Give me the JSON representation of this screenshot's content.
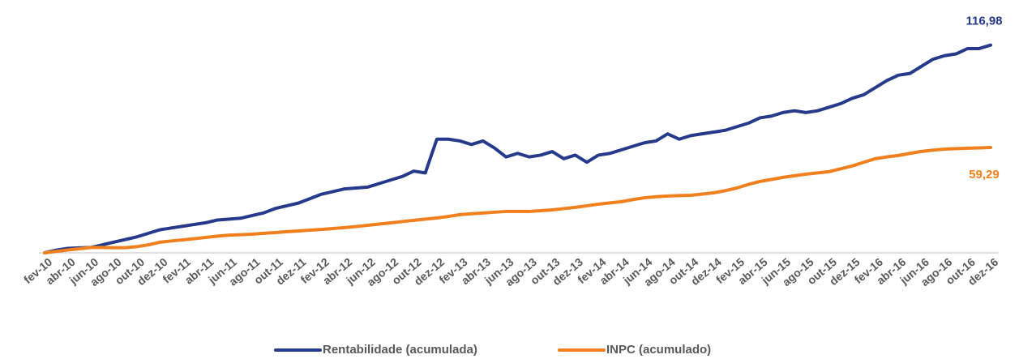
{
  "chart_data": {
    "type": "line",
    "categories": [
      "fev-10",
      null,
      "abr-10",
      null,
      "jun-10",
      null,
      "ago-10",
      null,
      "out-10",
      null,
      "dez-10",
      null,
      "fev-11",
      null,
      "abr-11",
      null,
      "jun-11",
      null,
      "ago-11",
      null,
      "out-11",
      null,
      "dez-11",
      null,
      "fev-12",
      null,
      "abr-12",
      null,
      "jun-12",
      null,
      "ago-12",
      null,
      "out-12",
      null,
      "dez-12",
      null,
      "fev-13",
      null,
      "abr-13",
      null,
      "jun-13",
      null,
      "ago-13",
      null,
      "out-13",
      null,
      "dez-13",
      null,
      "fev-14",
      null,
      "abr-14",
      null,
      "jun-14",
      null,
      "ago-14",
      null,
      "out-14",
      null,
      "dez-14",
      null,
      "fev-15",
      null,
      "abr-15",
      null,
      "jun-15",
      null,
      "ago-15",
      null,
      "out-15",
      null,
      "dez-15",
      null,
      "fev-16",
      null,
      "abr-16",
      null,
      "jun-16",
      null,
      "ago-16",
      null,
      "out-16",
      null,
      "dez-16"
    ],
    "series": [
      {
        "name": "Rentabilidade (acumulada)",
        "color": "#253a8a",
        "values": [
          0,
          1.5,
          2.5,
          2.8,
          3,
          4.5,
          6,
          7.5,
          9,
          11,
          13,
          14,
          15,
          16,
          17,
          18.5,
          19,
          19.5,
          21,
          22.5,
          25,
          26.5,
          28,
          30.5,
          33,
          34.5,
          36,
          36.5,
          37,
          39,
          41,
          43,
          46,
          45,
          64,
          64,
          63,
          61,
          63,
          59,
          54,
          56,
          54,
          55,
          57,
          53,
          55,
          51,
          55,
          56,
          58,
          60,
          62,
          63,
          67,
          64,
          66,
          67,
          68,
          69,
          71,
          73,
          76,
          77,
          79,
          80,
          79,
          80,
          82,
          84,
          87,
          89,
          93,
          97,
          100,
          101,
          105,
          109,
          111,
          112,
          115,
          115,
          116.98
        ],
        "value_labels": [
          null,
          null,
          null,
          null,
          null,
          null,
          null,
          null,
          null,
          null,
          null,
          null,
          null,
          null,
          null,
          null,
          null,
          null,
          null,
          null,
          null,
          null,
          null,
          null,
          null,
          null,
          null,
          null,
          null,
          null,
          null,
          null,
          null,
          null,
          null,
          null,
          null,
          null,
          null,
          null,
          null,
          null,
          null,
          null,
          null,
          null,
          null,
          null,
          null,
          null,
          null,
          null,
          null,
          null,
          null,
          null,
          null,
          null,
          null,
          null,
          null,
          null,
          null,
          null,
          null,
          null,
          null,
          null,
          null,
          null,
          null,
          null,
          null,
          null,
          null,
          null,
          null,
          null,
          null,
          null,
          null,
          null,
          "116,98"
        ]
      },
      {
        "name": "INPC (acumulado)",
        "color": "#f07f1e",
        "values": [
          0,
          0.8,
          1.6,
          2.3,
          3,
          3,
          2.9,
          2.9,
          3.5,
          4.5,
          6,
          6.7,
          7.3,
          8,
          8.7,
          9.4,
          10,
          10.2,
          10.5,
          11,
          11.4,
          11.9,
          12.3,
          12.8,
          13.2,
          13.7,
          14.2,
          14.8,
          15.5,
          16.2,
          16.9,
          17.6,
          18.3,
          19,
          19.6,
          20.5,
          21.5,
          22,
          22.4,
          22.9,
          23.3,
          23.3,
          23.3,
          23.7,
          24.2,
          24.9,
          25.6,
          26.5,
          27.4,
          28.1,
          28.8,
          30,
          31,
          31.6,
          32,
          32.2,
          32.4,
          33.1,
          33.8,
          35,
          36.5,
          38.5,
          40.2,
          41.3,
          42.5,
          43.4,
          44.3,
          45,
          45.7,
          47.3,
          48.9,
          51,
          53,
          54,
          54.8,
          56,
          57.1,
          57.8,
          58.4,
          58.7,
          58.9,
          59.1,
          59.29
        ],
        "value_labels": [
          null,
          null,
          null,
          null,
          null,
          null,
          null,
          null,
          null,
          null,
          null,
          null,
          null,
          null,
          null,
          null,
          null,
          null,
          null,
          null,
          null,
          null,
          null,
          null,
          null,
          null,
          null,
          null,
          null,
          null,
          null,
          null,
          null,
          null,
          null,
          null,
          null,
          null,
          null,
          null,
          null,
          null,
          null,
          null,
          null,
          null,
          null,
          null,
          null,
          null,
          null,
          null,
          null,
          null,
          null,
          null,
          null,
          null,
          null,
          null,
          null,
          null,
          null,
          null,
          null,
          null,
          null,
          null,
          null,
          null,
          null,
          null,
          null,
          null,
          null,
          null,
          null,
          null,
          null,
          null,
          null,
          null,
          "59,29"
        ]
      }
    ],
    "ylim": [
      0,
      120
    ]
  }
}
